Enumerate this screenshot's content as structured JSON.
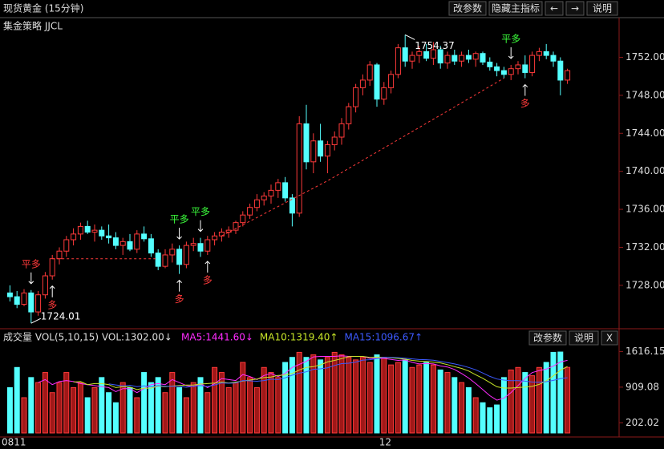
{
  "header": {
    "title": "现货黄金 (15分钟)",
    "buttons": [
      "改参数",
      "隐藏主指标",
      "←",
      "→",
      "说明"
    ]
  },
  "chart_data": [
    {
      "type": "candlestick",
      "title": "集金策略 JJCL",
      "up_color": "#ff3a3a",
      "down_color": "#54ffff",
      "open": [
        1727.2,
        1726.8,
        1726.0,
        1727.2,
        1725.2,
        1727.0,
        1729.0,
        1730.8,
        1731.6,
        1732.8,
        1733.4,
        1734.2,
        1733.6,
        1733.8,
        1733.2,
        1733.0,
        1732.2,
        1732.6,
        1731.8,
        1733.4,
        1732.9,
        1731.4,
        1730.0,
        1731.2,
        1731.8,
        1730.2,
        1732.2,
        1732.4,
        1731.6,
        1732.8,
        1733.2,
        1733.6,
        1733.8,
        1734.6,
        1735.4,
        1736.2,
        1737.0,
        1737.4,
        1738.0,
        1738.8,
        1737.2,
        1735.6,
        1745.0,
        1741.0,
        1743.2,
        1741.6,
        1742.8,
        1743.6,
        1745.0,
        1746.8,
        1748.8,
        1749.6,
        1751.2,
        1747.6,
        1748.8,
        1750.2,
        1753.0,
        1751.6,
        1752.2,
        1752.6,
        1751.9,
        1752.8,
        1751.4,
        1752.2,
        1751.6,
        1752.2,
        1751.8,
        1752.4,
        1751.5,
        1751.0,
        1750.6,
        1750.2,
        1750.8,
        1751.2,
        1750.4,
        1752.2,
        1752.6,
        1752.2,
        1751.6,
        1749.6
      ],
      "high": [
        1728.0,
        1727.4,
        1727.6,
        1727.5,
        1727.4,
        1729.4,
        1731.2,
        1732.0,
        1733.2,
        1734.0,
        1734.6,
        1734.8,
        1734.4,
        1734.2,
        1734.4,
        1733.6,
        1733.0,
        1733.4,
        1733.8,
        1734.2,
        1733.4,
        1731.8,
        1731.8,
        1732.4,
        1732.2,
        1732.6,
        1733.0,
        1733.0,
        1733.2,
        1733.6,
        1734.0,
        1734.2,
        1734.8,
        1735.8,
        1736.6,
        1737.6,
        1737.8,
        1738.6,
        1739.2,
        1739.4,
        1737.6,
        1745.8,
        1747.0,
        1744.0,
        1745.0,
        1743.2,
        1744.2,
        1745.6,
        1747.2,
        1749.2,
        1750.2,
        1751.6,
        1751.4,
        1749.4,
        1750.6,
        1753.4,
        1754.37,
        1752.6,
        1753.2,
        1753.4,
        1753.6,
        1753.2,
        1752.6,
        1752.8,
        1752.6,
        1752.8,
        1752.6,
        1752.6,
        1752.0,
        1751.4,
        1751.0,
        1751.2,
        1751.6,
        1752.2,
        1752.6,
        1753.0,
        1753.4,
        1752.6,
        1752.0,
        1750.8
      ],
      "low": [
        1726.3,
        1725.6,
        1725.8,
        1724.01,
        1724.8,
        1726.6,
        1728.6,
        1730.2,
        1731.0,
        1732.2,
        1732.8,
        1733.4,
        1732.6,
        1732.8,
        1732.4,
        1731.8,
        1731.2,
        1731.6,
        1731.4,
        1732.6,
        1731.0,
        1729.6,
        1729.8,
        1730.4,
        1729.2,
        1729.8,
        1731.6,
        1731.0,
        1731.2,
        1732.2,
        1732.6,
        1733.0,
        1733.4,
        1734.2,
        1735.0,
        1735.8,
        1736.4,
        1736.6,
        1737.2,
        1736.8,
        1734.2,
        1735.2,
        1740.2,
        1739.8,
        1741.0,
        1739.8,
        1742.2,
        1742.8,
        1744.4,
        1746.2,
        1748.0,
        1749.0,
        1746.8,
        1747.0,
        1748.2,
        1749.8,
        1751.0,
        1750.8,
        1751.4,
        1751.6,
        1751.2,
        1750.8,
        1750.8,
        1751.2,
        1751.0,
        1751.4,
        1751.0,
        1751.2,
        1750.6,
        1750.0,
        1749.8,
        1749.6,
        1750.2,
        1749.8,
        1750.0,
        1751.6,
        1751.8,
        1751.0,
        1748.0,
        1749.2
      ],
      "close": [
        1726.8,
        1726.0,
        1727.2,
        1725.2,
        1727.0,
        1729.0,
        1730.8,
        1731.6,
        1732.8,
        1733.4,
        1734.2,
        1733.6,
        1733.8,
        1733.2,
        1733.0,
        1732.2,
        1732.6,
        1731.8,
        1733.4,
        1732.9,
        1731.4,
        1730.0,
        1731.2,
        1731.8,
        1730.2,
        1732.2,
        1732.4,
        1731.6,
        1732.8,
        1733.2,
        1733.6,
        1733.8,
        1734.6,
        1735.4,
        1736.2,
        1737.0,
        1737.4,
        1738.0,
        1738.8,
        1737.2,
        1735.6,
        1745.0,
        1741.0,
        1743.2,
        1741.6,
        1742.8,
        1743.6,
        1745.0,
        1746.8,
        1748.8,
        1749.6,
        1751.2,
        1747.6,
        1748.8,
        1750.2,
        1753.0,
        1751.6,
        1752.2,
        1752.6,
        1751.9,
        1752.8,
        1751.4,
        1752.2,
        1751.6,
        1752.2,
        1751.8,
        1752.4,
        1751.5,
        1751.0,
        1750.6,
        1750.2,
        1750.8,
        1751.2,
        1750.4,
        1752.2,
        1752.6,
        1752.2,
        1751.6,
        1749.6,
        1750.6
      ],
      "ylim": [
        1723.6,
        1755.5
      ],
      "yticks": [
        {
          "value": 1728,
          "label": "1728.00"
        },
        {
          "value": 1732,
          "label": "1732.00"
        },
        {
          "value": 1736,
          "label": "1736.00"
        },
        {
          "value": 1740,
          "label": "1740.00"
        },
        {
          "value": 1744,
          "label": "1744.00"
        },
        {
          "value": 1748,
          "label": "1748.00"
        },
        {
          "value": 1752,
          "label": "1752.00"
        }
      ],
      "annotations": [
        {
          "text": "1754.37",
          "index": 56
        },
        {
          "text": "1724.01",
          "index": 3
        }
      ],
      "signals": [
        {
          "label": "平多",
          "index": 3,
          "color": "#ff3a3a"
        },
        {
          "label": "多",
          "index": 6,
          "color": "#ff3a3a"
        },
        {
          "label": "平多",
          "index": 24,
          "color": "#3cff3c"
        },
        {
          "label": "多",
          "index": 24,
          "color": "#ff3a3a"
        },
        {
          "label": "平多",
          "index": 27,
          "color": "#3cff3c"
        },
        {
          "label": "多",
          "index": 28,
          "color": "#ff3a3a"
        },
        {
          "label": "平多",
          "index": 71,
          "color": "#3cff3c"
        },
        {
          "label": "多",
          "index": 73,
          "color": "#ff3a3a"
        }
      ],
      "trail": {
        "x": [
          6,
          21,
          21,
          30,
          45,
          70
        ],
        "values": [
          1730.8,
          1730.8,
          null,
          1733.2,
          1739.0,
          1749.8
        ],
        "color": "#ff3a3a"
      }
    },
    {
      "type": "bar",
      "title": "成交量 VOL(5,10,15) VOL:1302.00↓",
      "buttons": [
        "改参数",
        "说明",
        "X"
      ],
      "categories": [
        "0811",
        null,
        null,
        null,
        null,
        null,
        null,
        null,
        null,
        null,
        null,
        null,
        null,
        null,
        null,
        null,
        null,
        null,
        null,
        null,
        null,
        null,
        null,
        null,
        null,
        null,
        null,
        null,
        null,
        null,
        null,
        null,
        null,
        null,
        null,
        null,
        null,
        null,
        null,
        null,
        null,
        null,
        null,
        null,
        null,
        null,
        null,
        null,
        null,
        null,
        null,
        null,
        null,
        "12",
        null,
        null,
        null,
        null,
        null,
        null,
        null,
        null,
        null,
        null,
        null,
        null,
        null,
        null,
        null,
        null,
        null,
        null,
        null,
        null,
        null,
        null,
        null,
        null,
        null,
        null
      ],
      "values": [
        900,
        1300,
        700,
        1100,
        1000,
        1200,
        800,
        1000,
        1200,
        900,
        1000,
        700,
        900,
        1100,
        800,
        600,
        1000,
        900,
        700,
        1200,
        1000,
        1100,
        800,
        1200,
        900,
        700,
        1000,
        1100,
        800,
        1300,
        1200,
        900,
        1000,
        1400,
        1100,
        900,
        1300,
        1200,
        1100,
        1400,
        1500,
        1600,
        1500,
        1550,
        1450,
        1500,
        1600,
        1550,
        1500,
        1450,
        1500,
        1400,
        1550,
        1500,
        1350,
        1400,
        1450,
        1300,
        1350,
        1400,
        1350,
        1250,
        1200,
        1100,
        1000,
        900,
        700,
        600,
        500,
        556,
        1100,
        1250,
        1300,
        1200,
        1136,
        1300,
        1400,
        1600,
        1606,
        1302
      ],
      "ma_lines": [
        {
          "name": "MA5:1441.60↓",
          "period": 5,
          "color": "#ff2cff"
        },
        {
          "name": "MA10:1319.40↑",
          "period": 10,
          "color": "#c8e628"
        },
        {
          "name": "MA15:1096.67↑",
          "period": 15,
          "color": "#3c5aff"
        }
      ],
      "ylim": [
        0,
        1734
      ],
      "yticks": [
        202.02,
        909.08,
        1616.15
      ]
    }
  ]
}
